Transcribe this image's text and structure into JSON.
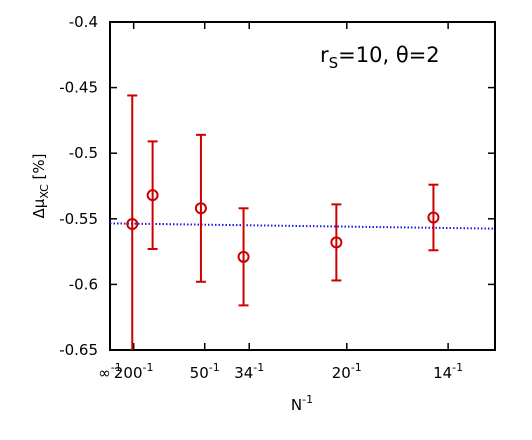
{
  "chart_data": {
    "type": "scatter",
    "annotation": {
      "base": "r",
      "sub": "S",
      "rest": "=10, θ=2"
    },
    "ylabel": {
      "base": "Δμ",
      "sub": "XC",
      "rest": " [%]"
    },
    "xlabel": {
      "base": "N",
      "sup": "-1"
    },
    "xlim": [
      0,
      0.0813
    ],
    "ylim": [
      -0.65,
      -0.4
    ],
    "yticks": [
      "-0.4",
      "-0.45",
      "-0.5",
      "-0.55",
      "-0.6",
      "-0.65"
    ],
    "xticks": [
      {
        "value": 0,
        "base": "∞",
        "sup": "-1"
      },
      {
        "value": 0.005,
        "base": "200",
        "sup": "-1"
      },
      {
        "value": 0.02,
        "base": "50",
        "sup": "-1"
      },
      {
        "value": 0.0294,
        "base": "34",
        "sup": "-1"
      },
      {
        "value": 0.05,
        "base": "20",
        "sup": "-1"
      },
      {
        "value": 0.0714,
        "base": "14",
        "sup": "-1"
      }
    ],
    "series": [
      {
        "color": "#cc0000",
        "points": [
          {
            "x": 0.0047,
            "y": -0.554,
            "err": 0.098
          },
          {
            "x": 0.009,
            "y": -0.532,
            "err": 0.041
          },
          {
            "x": 0.0192,
            "y": -0.542,
            "err": 0.056
          },
          {
            "x": 0.0282,
            "y": -0.579,
            "err": 0.037
          },
          {
            "x": 0.0478,
            "y": -0.568,
            "err": 0.029
          },
          {
            "x": 0.0683,
            "y": -0.549,
            "err": 0.025
          }
        ]
      }
    ],
    "fit": {
      "color": "#1a1ae6",
      "style": "dotted",
      "x": [
        0,
        0.0813
      ],
      "y": [
        -0.5535,
        -0.5575
      ]
    }
  }
}
